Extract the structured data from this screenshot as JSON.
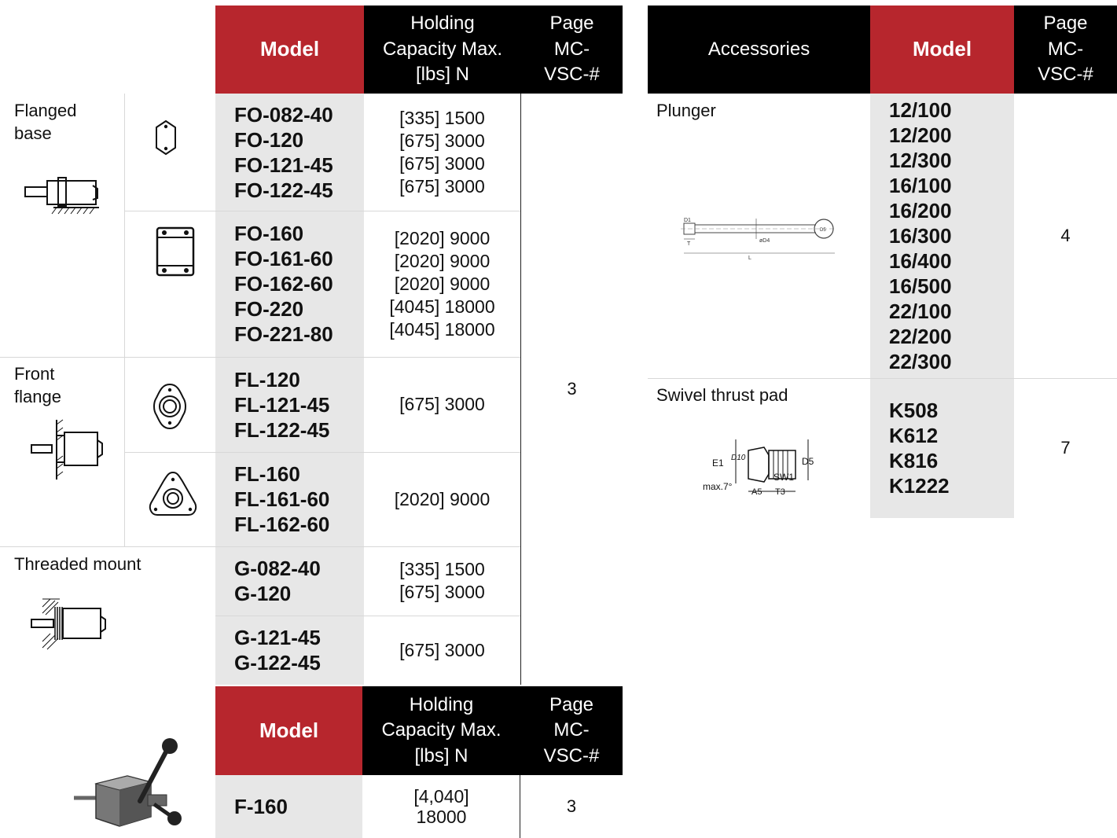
{
  "left_table": {
    "header": {
      "model": "Model",
      "capacity": [
        "Holding",
        "Capacity Max.",
        "[lbs] N"
      ],
      "page": [
        "Page",
        "MC-",
        "VSC-#"
      ]
    },
    "groups": [
      {
        "label": [
          "Flanged",
          "base"
        ]
      },
      {
        "label": [
          "Front",
          "flange"
        ]
      },
      {
        "label": [
          "Threaded mount"
        ]
      }
    ],
    "rows": [
      {
        "models": [
          "FO-082-40",
          "FO-120",
          "FO-121-45",
          "FO-122-45"
        ],
        "capacities": [
          "[335] 1500",
          "[675] 3000",
          "[675] 3000",
          "[675] 3000"
        ]
      },
      {
        "models": [
          "FO-160",
          "FO-161-60",
          "FO-162-60",
          "FO-220",
          "FO-221-80"
        ],
        "capacities": [
          "[2020] 9000",
          "[2020] 9000",
          "[2020] 9000",
          "[4045] 18000",
          "[4045] 18000"
        ]
      },
      {
        "models": [
          "FL-120",
          "FL-121-45",
          "FL-122-45"
        ],
        "capacities": [
          "[675] 3000"
        ]
      },
      {
        "models": [
          "FL-160",
          "FL-161-60",
          "FL-162-60"
        ],
        "capacities": [
          "[2020] 9000"
        ]
      },
      {
        "models": [
          "G-082-40",
          "G-120"
        ],
        "capacities": [
          "[335] 1500",
          "[675] 3000"
        ]
      },
      {
        "models": [
          "G-121-45",
          "G-122-45"
        ],
        "capacities": [
          "[675] 3000"
        ]
      }
    ],
    "page": "3"
  },
  "bottom_table": {
    "header": {
      "model": "Model",
      "capacity": [
        "Holding",
        "Capacity Max.",
        "[lbs] N"
      ],
      "page": [
        "Page",
        "MC-",
        "VSC-#"
      ]
    },
    "row": {
      "model": "F-160",
      "capacity": [
        "[4,040]",
        "18000"
      ],
      "page": "3"
    }
  },
  "accessories": {
    "header": {
      "accessories": "Accessories",
      "model": "Model",
      "page": [
        "Page",
        "MC-",
        "VSC-#"
      ]
    },
    "rows": [
      {
        "label": "Plunger",
        "models": [
          "12/100",
          "12/200",
          "12/300",
          "16/100",
          "16/200",
          "16/300",
          "16/400",
          "16/500",
          "22/100",
          "22/200",
          "22/300"
        ],
        "page": "4"
      },
      {
        "label": "Swivel thrust pad",
        "models": [
          "K508",
          "K612",
          "K816",
          "K1222"
        ],
        "page": "7"
      }
    ],
    "drawing_labels": {
      "plunger": [
        "D1",
        "T",
        "øD4",
        "D5",
        "L"
      ],
      "pad": [
        "E1",
        "D10",
        "D5",
        "SW1",
        "max.7°",
        "A5",
        "T3"
      ]
    }
  }
}
